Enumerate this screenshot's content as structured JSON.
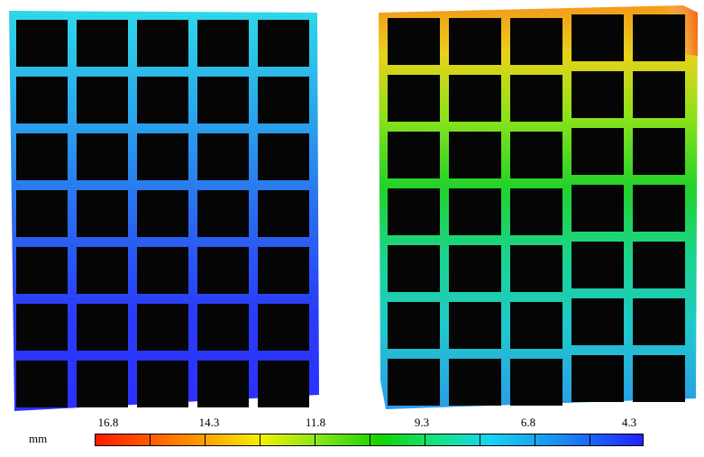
{
  "legend": {
    "unit": "mm",
    "ticks": [
      "16.8",
      "14.3",
      "11.8",
      "9.3",
      "6.8",
      "4.3"
    ]
  },
  "colors": {
    "scale": [
      "#ff1a00",
      "#ff8a00",
      "#f3f000",
      "#8fe81a",
      "#14d400",
      "#14e48c",
      "#18d4f0",
      "#1a8cf0",
      "#2022ff"
    ],
    "background_cells": "#000000"
  },
  "panels": [
    {
      "name": "undeformed-grid-panel",
      "rows": 7,
      "cols": 5
    },
    {
      "name": "deformed-grid-panel",
      "rows": 7,
      "cols": 5
    }
  ]
}
